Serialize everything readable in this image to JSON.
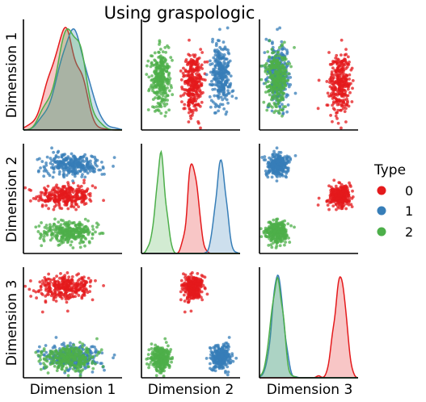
{
  "title": "Using graspologic",
  "chart_data": {
    "type": "scatter",
    "subtype": "pairplot",
    "dimensions": [
      "Dimension 1",
      "Dimension 2",
      "Dimension 3"
    ],
    "diagonal": "kde",
    "ticks_shown": false,
    "grid": false,
    "legend": {
      "title": "Type",
      "placement": "right",
      "entries": [
        "0",
        "1",
        "2"
      ]
    },
    "series": [
      {
        "name": "0",
        "color": "#e41a1c",
        "n": 300,
        "mean": [
          -0.25,
          0.2,
          1.8
        ],
        "std": [
          0.45,
          0.12,
          0.2
        ]
      },
      {
        "name": "1",
        "color": "#377eb8",
        "n": 300,
        "mean": [
          0.0,
          0.85,
          -0.6
        ],
        "std": [
          0.45,
          0.12,
          0.2
        ]
      },
      {
        "name": "2",
        "color": "#4daf4a",
        "n": 300,
        "mean": [
          -0.1,
          -0.55,
          -0.6
        ],
        "std": [
          0.45,
          0.12,
          0.2
        ]
      }
    ],
    "axis_ranges": [
      [
        -1.6,
        1.6
      ],
      [
        -1.0,
        1.3
      ],
      [
        -1.3,
        2.5
      ]
    ]
  }
}
